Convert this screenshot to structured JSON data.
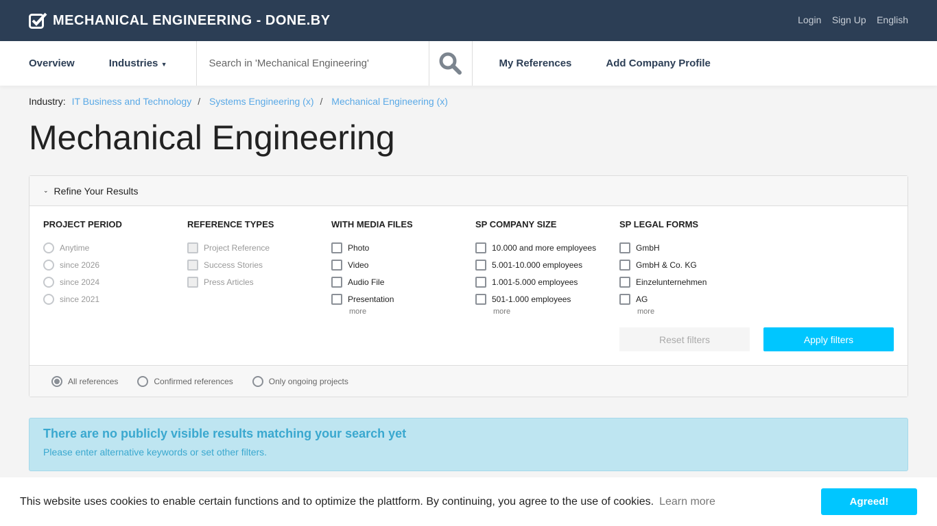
{
  "header": {
    "title": "MECHANICAL ENGINEERING - DONE.BY",
    "links": [
      "Login",
      "Sign Up",
      "English"
    ]
  },
  "nav": {
    "overview": "Overview",
    "industries": "Industries",
    "search_placeholder": "Search in 'Mechanical Engineering'",
    "my_refs": "My References",
    "add_profile": "Add Company Profile"
  },
  "breadcrumb": {
    "label": "Industry:",
    "items": [
      "IT Business and Technology",
      "Systems Engineering (x)",
      "Mechanical Engineering (x)"
    ]
  },
  "page_title": "Mechanical Engineering",
  "filters": {
    "toggle": "Refine Your Results",
    "groups": [
      {
        "title": "PROJECT PERIOD",
        "options": [
          "Anytime",
          "since 2026",
          "since 2024",
          "since 2021"
        ]
      },
      {
        "title": "REFERENCE TYPES",
        "options": [
          "Project Reference",
          "Success Stories",
          "Press Articles"
        ]
      },
      {
        "title": "WITH MEDIA FILES",
        "options": [
          "Photo",
          "Video",
          "Audio File",
          "Presentation"
        ],
        "more": "more"
      },
      {
        "title": "SP COMPANY SIZE",
        "options": [
          "10.000 and more employees",
          "5.001-10.000 employees",
          "1.001-5.000 employees",
          "501-1.000 employees"
        ],
        "more": "more"
      },
      {
        "title": "SP LEGAL FORMS",
        "options": [
          "GmbH",
          "GmbH & Co. KG",
          "Einzelunternehmen",
          "AG"
        ],
        "more": "more"
      }
    ],
    "reset": "Reset filters",
    "apply": "Apply filters",
    "scope": [
      "All references",
      "Confirmed references",
      "Only ongoing projects"
    ],
    "scope_selected": "All references"
  },
  "alert": {
    "title": "There are no publicly visible results matching your search yet",
    "text": "Please enter alternative keywords or set other filters."
  },
  "cookie": {
    "text": "This website uses cookies to enable certain functions and to optimize the plattform. By continuing, you agree to the use of cookies.",
    "learn": "Learn more",
    "agree": "Agreed!"
  }
}
